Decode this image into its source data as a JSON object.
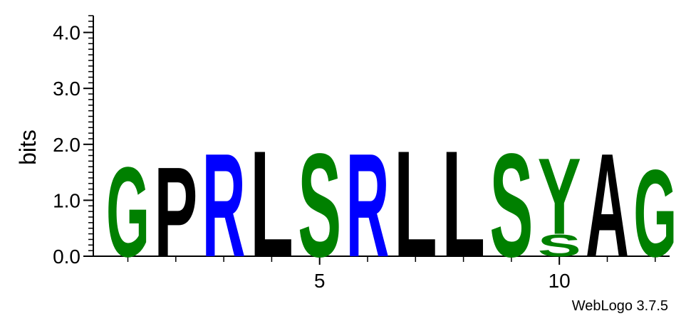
{
  "chart_data": {
    "type": "sequence-logo",
    "ylabel": "bits",
    "ylim": [
      0,
      4.3
    ],
    "y_ticks": [
      {
        "value": 0,
        "label": "0.0"
      },
      {
        "value": 1,
        "label": "1.0"
      },
      {
        "value": 2,
        "label": "2.0"
      },
      {
        "value": 3,
        "label": "3.0"
      },
      {
        "value": 4,
        "label": "4.0"
      }
    ],
    "x_range": [
      1,
      12
    ],
    "x_tick_labels": [
      {
        "position": 5,
        "label": "5"
      },
      {
        "position": 10,
        "label": "10"
      }
    ],
    "positions": [
      {
        "pos": 1,
        "letters": [
          {
            "aa": "G",
            "bits": 1.65
          }
        ]
      },
      {
        "pos": 2,
        "letters": [
          {
            "aa": "P",
            "bits": 1.65
          }
        ]
      },
      {
        "pos": 3,
        "letters": [
          {
            "aa": "R",
            "bits": 1.9
          }
        ]
      },
      {
        "pos": 4,
        "letters": [
          {
            "aa": "L",
            "bits": 1.95
          }
        ]
      },
      {
        "pos": 5,
        "letters": [
          {
            "aa": "S",
            "bits": 1.9
          }
        ]
      },
      {
        "pos": 6,
        "letters": [
          {
            "aa": "R",
            "bits": 1.9
          }
        ]
      },
      {
        "pos": 7,
        "letters": [
          {
            "aa": "L",
            "bits": 1.95
          }
        ]
      },
      {
        "pos": 8,
        "letters": [
          {
            "aa": "L",
            "bits": 1.95
          }
        ]
      },
      {
        "pos": 9,
        "letters": [
          {
            "aa": "S",
            "bits": 1.9
          }
        ]
      },
      {
        "pos": 10,
        "letters": [
          {
            "aa": "S",
            "bits": 0.4
          },
          {
            "aa": "Y",
            "bits": 1.4
          }
        ]
      },
      {
        "pos": 11,
        "letters": [
          {
            "aa": "A",
            "bits": 1.9
          }
        ]
      },
      {
        "pos": 12,
        "letters": [
          {
            "aa": "G",
            "bits": 1.6
          }
        ]
      }
    ],
    "colors": {
      "G": "#008000",
      "S": "#008000",
      "Y": "#008000",
      "R": "#0000ff",
      "P": "#000000",
      "L": "#000000",
      "A": "#000000"
    }
  },
  "credit": "WebLogo 3.7.5"
}
